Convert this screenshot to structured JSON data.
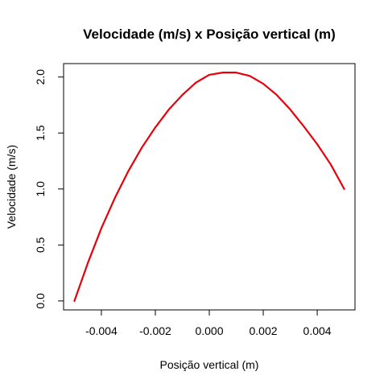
{
  "chart_data": {
    "type": "line",
    "title": "Velocidade (m/s) x Posição vertical (m)",
    "xlabel": "Posição vertical (m)",
    "ylabel": "Velocidade (m/s)",
    "xlim": [
      -0.0054,
      0.0054
    ],
    "ylim": [
      -0.08,
      2.12
    ],
    "x_ticks": [
      -0.004,
      -0.002,
      0.0,
      0.002,
      0.004
    ],
    "x_tick_labels": [
      "-0.004",
      "-0.002",
      "0.000",
      "0.002",
      "0.004"
    ],
    "y_ticks": [
      0.0,
      0.5,
      1.0,
      1.5,
      2.0
    ],
    "y_tick_labels": [
      "0.0",
      "0.5",
      "1.0",
      "1.5",
      "2.0"
    ],
    "grid": false,
    "series": [
      {
        "color": "#e8000b",
        "x": [
          -0.005,
          -0.0045,
          -0.004,
          -0.0035,
          -0.003,
          -0.0025,
          -0.002,
          -0.0015,
          -0.001,
          -0.0005,
          0.0,
          0.0005,
          0.0008,
          0.001,
          0.0015,
          0.002,
          0.0025,
          0.003,
          0.0035,
          0.004,
          0.0045,
          0.005
        ],
        "y": [
          0.0,
          0.34,
          0.65,
          0.92,
          1.16,
          1.37,
          1.55,
          1.71,
          1.84,
          1.95,
          2.02,
          2.04,
          2.04,
          2.04,
          2.01,
          1.94,
          1.84,
          1.71,
          1.56,
          1.4,
          1.22,
          1.0
        ]
      }
    ]
  }
}
